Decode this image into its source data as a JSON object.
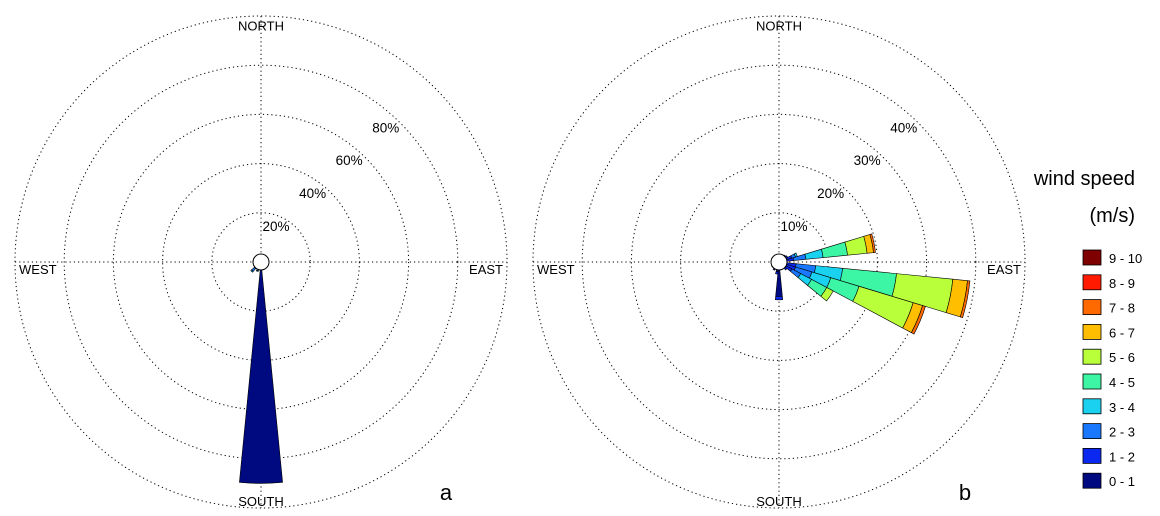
{
  "chart_data": [
    {
      "type": "wind-rose",
      "panel_label": "a",
      "directions": [
        "NORTH",
        "EAST",
        "SOUTH",
        "WEST"
      ],
      "ring_values": [
        20,
        40,
        60,
        80
      ],
      "ring_labels": [
        "20%",
        "40%",
        "60%",
        "80%"
      ],
      "rmax": 100,
      "sectors": [
        {
          "dir_deg": 180,
          "bins": [
            {
              "bin": "0 - 1",
              "value": 90
            }
          ]
        },
        {
          "dir_deg": 202.5,
          "bins": [
            {
              "bin": "0 - 1",
              "value": 2
            },
            {
              "bin": "1 - 2",
              "value": 1
            },
            {
              "bin": "2 - 3",
              "value": 0.8
            },
            {
              "bin": "3 - 4",
              "value": 0.3
            }
          ]
        },
        {
          "dir_deg": 225,
          "bins": [
            {
              "bin": "0 - 1",
              "value": 2
            },
            {
              "bin": "1 - 2",
              "value": 1.5
            },
            {
              "bin": "2 - 3",
              "value": 1.5
            },
            {
              "bin": "3 - 4",
              "value": 0.4
            }
          ]
        },
        {
          "dir_deg": 247.5,
          "bins": [
            {
              "bin": "0 - 1",
              "value": 1.5
            },
            {
              "bin": "1 - 2",
              "value": 1
            },
            {
              "bin": "2 - 3",
              "value": 0.6
            }
          ]
        },
        {
          "dir_deg": 270,
          "bins": [
            {
              "bin": "0 - 1",
              "value": 1.5
            },
            {
              "bin": "1 - 2",
              "value": 0.5
            }
          ]
        },
        {
          "dir_deg": 157.5,
          "bins": [
            {
              "bin": "0 - 1",
              "value": 1.5
            },
            {
              "bin": "1 - 2",
              "value": 0.5
            }
          ]
        },
        {
          "dir_deg": 135,
          "bins": [
            {
              "bin": "0 - 1",
              "value": 1.5
            },
            {
              "bin": "1 - 2",
              "value": 0.7
            },
            {
              "bin": "2 - 3",
              "value": 0.3
            }
          ]
        },
        {
          "dir_deg": 112.5,
          "bins": [
            {
              "bin": "0 - 1",
              "value": 1.5
            },
            {
              "bin": "1 - 2",
              "value": 1
            },
            {
              "bin": "2 - 3",
              "value": 0.5
            }
          ]
        },
        {
          "dir_deg": 90,
          "bins": [
            {
              "bin": "0 - 1",
              "value": 1
            },
            {
              "bin": "1 - 2",
              "value": 0.5
            }
          ]
        }
      ]
    },
    {
      "type": "wind-rose",
      "panel_label": "b",
      "directions": [
        "NORTH",
        "EAST",
        "SOUTH",
        "WEST"
      ],
      "ring_values": [
        10,
        20,
        30,
        40
      ],
      "ring_labels": [
        "10%",
        "20%",
        "30%",
        "40%"
      ],
      "rmax": 50,
      "sectors": [
        {
          "dir_deg": 101.25,
          "bins": [
            {
              "bin": "0 - 1",
              "value": 1.5
            },
            {
              "bin": "1 - 2",
              "value": 2
            },
            {
              "bin": "2 - 3",
              "value": 4
            },
            {
              "bin": "3 - 4",
              "value": 5.5
            },
            {
              "bin": "4 - 5",
              "value": 11
            },
            {
              "bin": "5 - 6",
              "value": 11.5
            },
            {
              "bin": "6 - 7",
              "value": 3
            },
            {
              "bin": "7 - 8",
              "value": 0.5
            }
          ]
        },
        {
          "dir_deg": 78.75,
          "bins": [
            {
              "bin": "0 - 1",
              "value": 1.5
            },
            {
              "bin": "1 - 2",
              "value": 1.5
            },
            {
              "bin": "2 - 3",
              "value": 2.5
            },
            {
              "bin": "3 - 4",
              "value": 3.5
            },
            {
              "bin": "4 - 5",
              "value": 5
            },
            {
              "bin": "5 - 6",
              "value": 4
            },
            {
              "bin": "6 - 7",
              "value": 1.3
            },
            {
              "bin": "7 - 8",
              "value": 0.4
            }
          ]
        },
        {
          "dir_deg": 112.5,
          "bins": [
            {
              "bin": "0 - 1",
              "value": 1.5
            },
            {
              "bin": "1 - 2",
              "value": 2
            },
            {
              "bin": "2 - 3",
              "value": 3.5
            },
            {
              "bin": "3 - 4",
              "value": 4
            },
            {
              "bin": "4 - 5",
              "value": 6
            },
            {
              "bin": "5 - 6",
              "value": 11.5
            },
            {
              "bin": "6 - 7",
              "value": 2
            },
            {
              "bin": "7 - 8",
              "value": 0.6
            }
          ]
        },
        {
          "dir_deg": 123.75,
          "bins": [
            {
              "bin": "0 - 1",
              "value": 1.5
            },
            {
              "bin": "1 - 2",
              "value": 1.5
            },
            {
              "bin": "2 - 3",
              "value": 2
            },
            {
              "bin": "3 - 4",
              "value": 2.5
            },
            {
              "bin": "4 - 5",
              "value": 3.5
            },
            {
              "bin": "5 - 6",
              "value": 1.5
            }
          ]
        },
        {
          "dir_deg": 180,
          "bins": [
            {
              "bin": "0 - 1",
              "value": 7
            },
            {
              "bin": "1 - 2",
              "value": 0.7
            }
          ]
        },
        {
          "dir_deg": 191.25,
          "bins": [
            {
              "bin": "0 - 1",
              "value": 2
            },
            {
              "bin": "1 - 2",
              "value": 0.5
            }
          ]
        },
        {
          "dir_deg": 67.5,
          "bins": [
            {
              "bin": "0 - 1",
              "value": 1.5
            },
            {
              "bin": "1 - 2",
              "value": 1.2
            },
            {
              "bin": "2 - 3",
              "value": 0.8
            },
            {
              "bin": "3 - 4",
              "value": 0.4
            }
          ]
        },
        {
          "dir_deg": 56.25,
          "bins": [
            {
              "bin": "0 - 1",
              "value": 1.4
            },
            {
              "bin": "1 - 2",
              "value": 0.6
            }
          ]
        },
        {
          "dir_deg": 135,
          "bins": [
            {
              "bin": "0 - 1",
              "value": 1.5
            },
            {
              "bin": "1 - 2",
              "value": 0.6
            }
          ]
        },
        {
          "dir_deg": 213.75,
          "bins": [
            {
              "bin": "0 - 1",
              "value": 1.3
            },
            {
              "bin": "1 - 2",
              "value": 0.6
            }
          ]
        },
        {
          "dir_deg": 236.25,
          "bins": [
            {
              "bin": "0 - 1",
              "value": 1.2
            },
            {
              "bin": "1 - 2",
              "value": 0.5
            }
          ]
        },
        {
          "dir_deg": 258.75,
          "bins": [
            {
              "bin": "0 - 1",
              "value": 1.2
            },
            {
              "bin": "1 - 2",
              "value": 0.4
            }
          ]
        },
        {
          "dir_deg": 281.25,
          "bins": [
            {
              "bin": "0 - 1",
              "value": 1.1
            }
          ]
        },
        {
          "dir_deg": 315,
          "bins": [
            {
              "bin": "0 - 1",
              "value": 1.1
            }
          ]
        },
        {
          "dir_deg": 348.75,
          "bins": [
            {
              "bin": "0 - 1",
              "value": 1.1
            }
          ]
        },
        {
          "dir_deg": 22.5,
          "bins": [
            {
              "bin": "0 - 1",
              "value": 1.2
            },
            {
              "bin": "1 - 2",
              "value": 0.4
            }
          ]
        },
        {
          "dir_deg": 45,
          "bins": [
            {
              "bin": "0 - 1",
              "value": 1.3
            },
            {
              "bin": "1 - 2",
              "value": 0.5
            }
          ]
        }
      ]
    }
  ],
  "legend": {
    "title_line1": "wind speed",
    "title_line2": "(m/s)",
    "items": [
      {
        "label": "9 - 10",
        "color": "#7f0000"
      },
      {
        "label": "8 - 9",
        "color": "#ff1a00"
      },
      {
        "label": "7 - 8",
        "color": "#ff6a00"
      },
      {
        "label": "6 - 7",
        "color": "#ffbf00"
      },
      {
        "label": "5 - 6",
        "color": "#b9ff3a"
      },
      {
        "label": "4 - 5",
        "color": "#3cf5a5"
      },
      {
        "label": "3 - 4",
        "color": "#1ad2f0"
      },
      {
        "label": "2 - 3",
        "color": "#1a78ff"
      },
      {
        "label": "1 - 2",
        "color": "#0a28f0"
      },
      {
        "label": "0 - 1",
        "color": "#000a80"
      }
    ]
  }
}
